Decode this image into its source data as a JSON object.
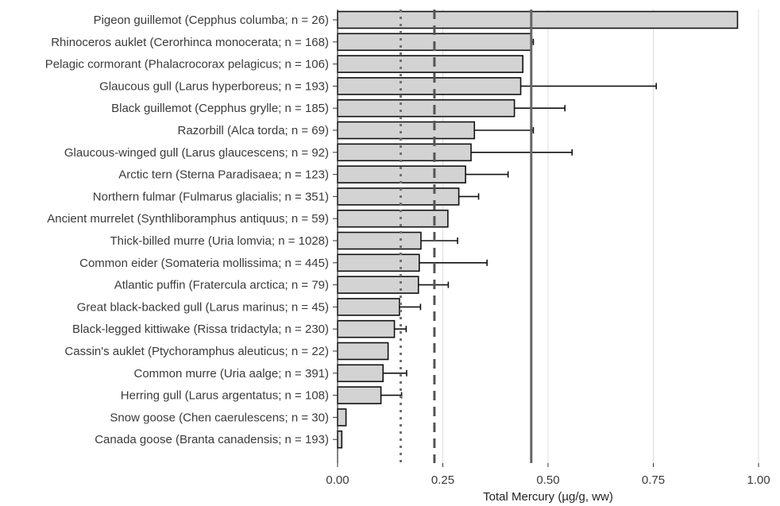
{
  "chart_data": {
    "type": "bar",
    "orientation": "horizontal",
    "xlabel": "Total Mercury (µg/g, ww)",
    "ylabel": "",
    "xlim": [
      0,
      1.0
    ],
    "xticks": [
      0.0,
      0.25,
      0.5,
      0.75,
      1.0
    ],
    "xtick_labels": [
      "0.00",
      "0.25",
      "0.50",
      "0.75",
      "1.00"
    ],
    "grid": "vertical",
    "bar_color": "#d3d3d3",
    "bar_edge_color": "#111111",
    "categories": [
      "Pigeon guillemot (Cepphus columba; n = 26)",
      "Rhinoceros auklet (Cerorhinca monocerata; n = 168)",
      "Pelagic cormorant (Phalacrocorax pelagicus; n = 106)",
      "Glaucous gull (Larus hyperboreus; n = 193)",
      "Black guillemot (Cepphus grylle; n = 185)",
      "Razorbill (Alca torda; n = 69)",
      "Glaucous-winged gull (Larus glaucescens; n = 92)",
      "Arctic tern (Sterna Paradisaea; n = 123)",
      "Northern fulmar (Fulmarus glacialis; n = 351)",
      "Ancient murrelet (Synthliboramphus antiquus; n = 59)",
      "Thick-billed murre (Uria lomvia; n = 1028)",
      "Common eider (Somateria mollissima; n = 445)",
      "Atlantic puffin (Fratercula arctica; n = 79)",
      "Great black-backed gull (Larus marinus; n = 45)",
      "Black-legged kittiwake (Rissa tridactyla; n = 230)",
      "Cassin's auklet (Ptychoramphus aleuticus; n = 22)",
      "Common murre (Uria aalge; n = 391)",
      "Herring gull (Larus argentatus; n = 108)",
      "Snow goose (Chen caerulescens; n = 30)",
      "Canada goose (Branta canadensis; n = 193)"
    ],
    "values": [
      0.95,
      0.46,
      0.44,
      0.435,
      0.42,
      0.325,
      0.317,
      0.304,
      0.288,
      0.262,
      0.198,
      0.194,
      0.192,
      0.147,
      0.135,
      0.12,
      0.108,
      0.103,
      0.02,
      0.01
    ],
    "error_upper": [
      null,
      0.465,
      null,
      0.757,
      0.54,
      0.465,
      0.557,
      0.405,
      0.335,
      null,
      0.285,
      0.355,
      0.263,
      0.197,
      0.163,
      null,
      0.164,
      0.152,
      null,
      null
    ],
    "reference_lines": [
      {
        "value": 0.15,
        "style": "dotted",
        "color": "#707070"
      },
      {
        "value": 0.23,
        "style": "dashed",
        "color": "#555555"
      },
      {
        "value": 0.46,
        "style": "solid",
        "color": "#666666"
      }
    ]
  }
}
